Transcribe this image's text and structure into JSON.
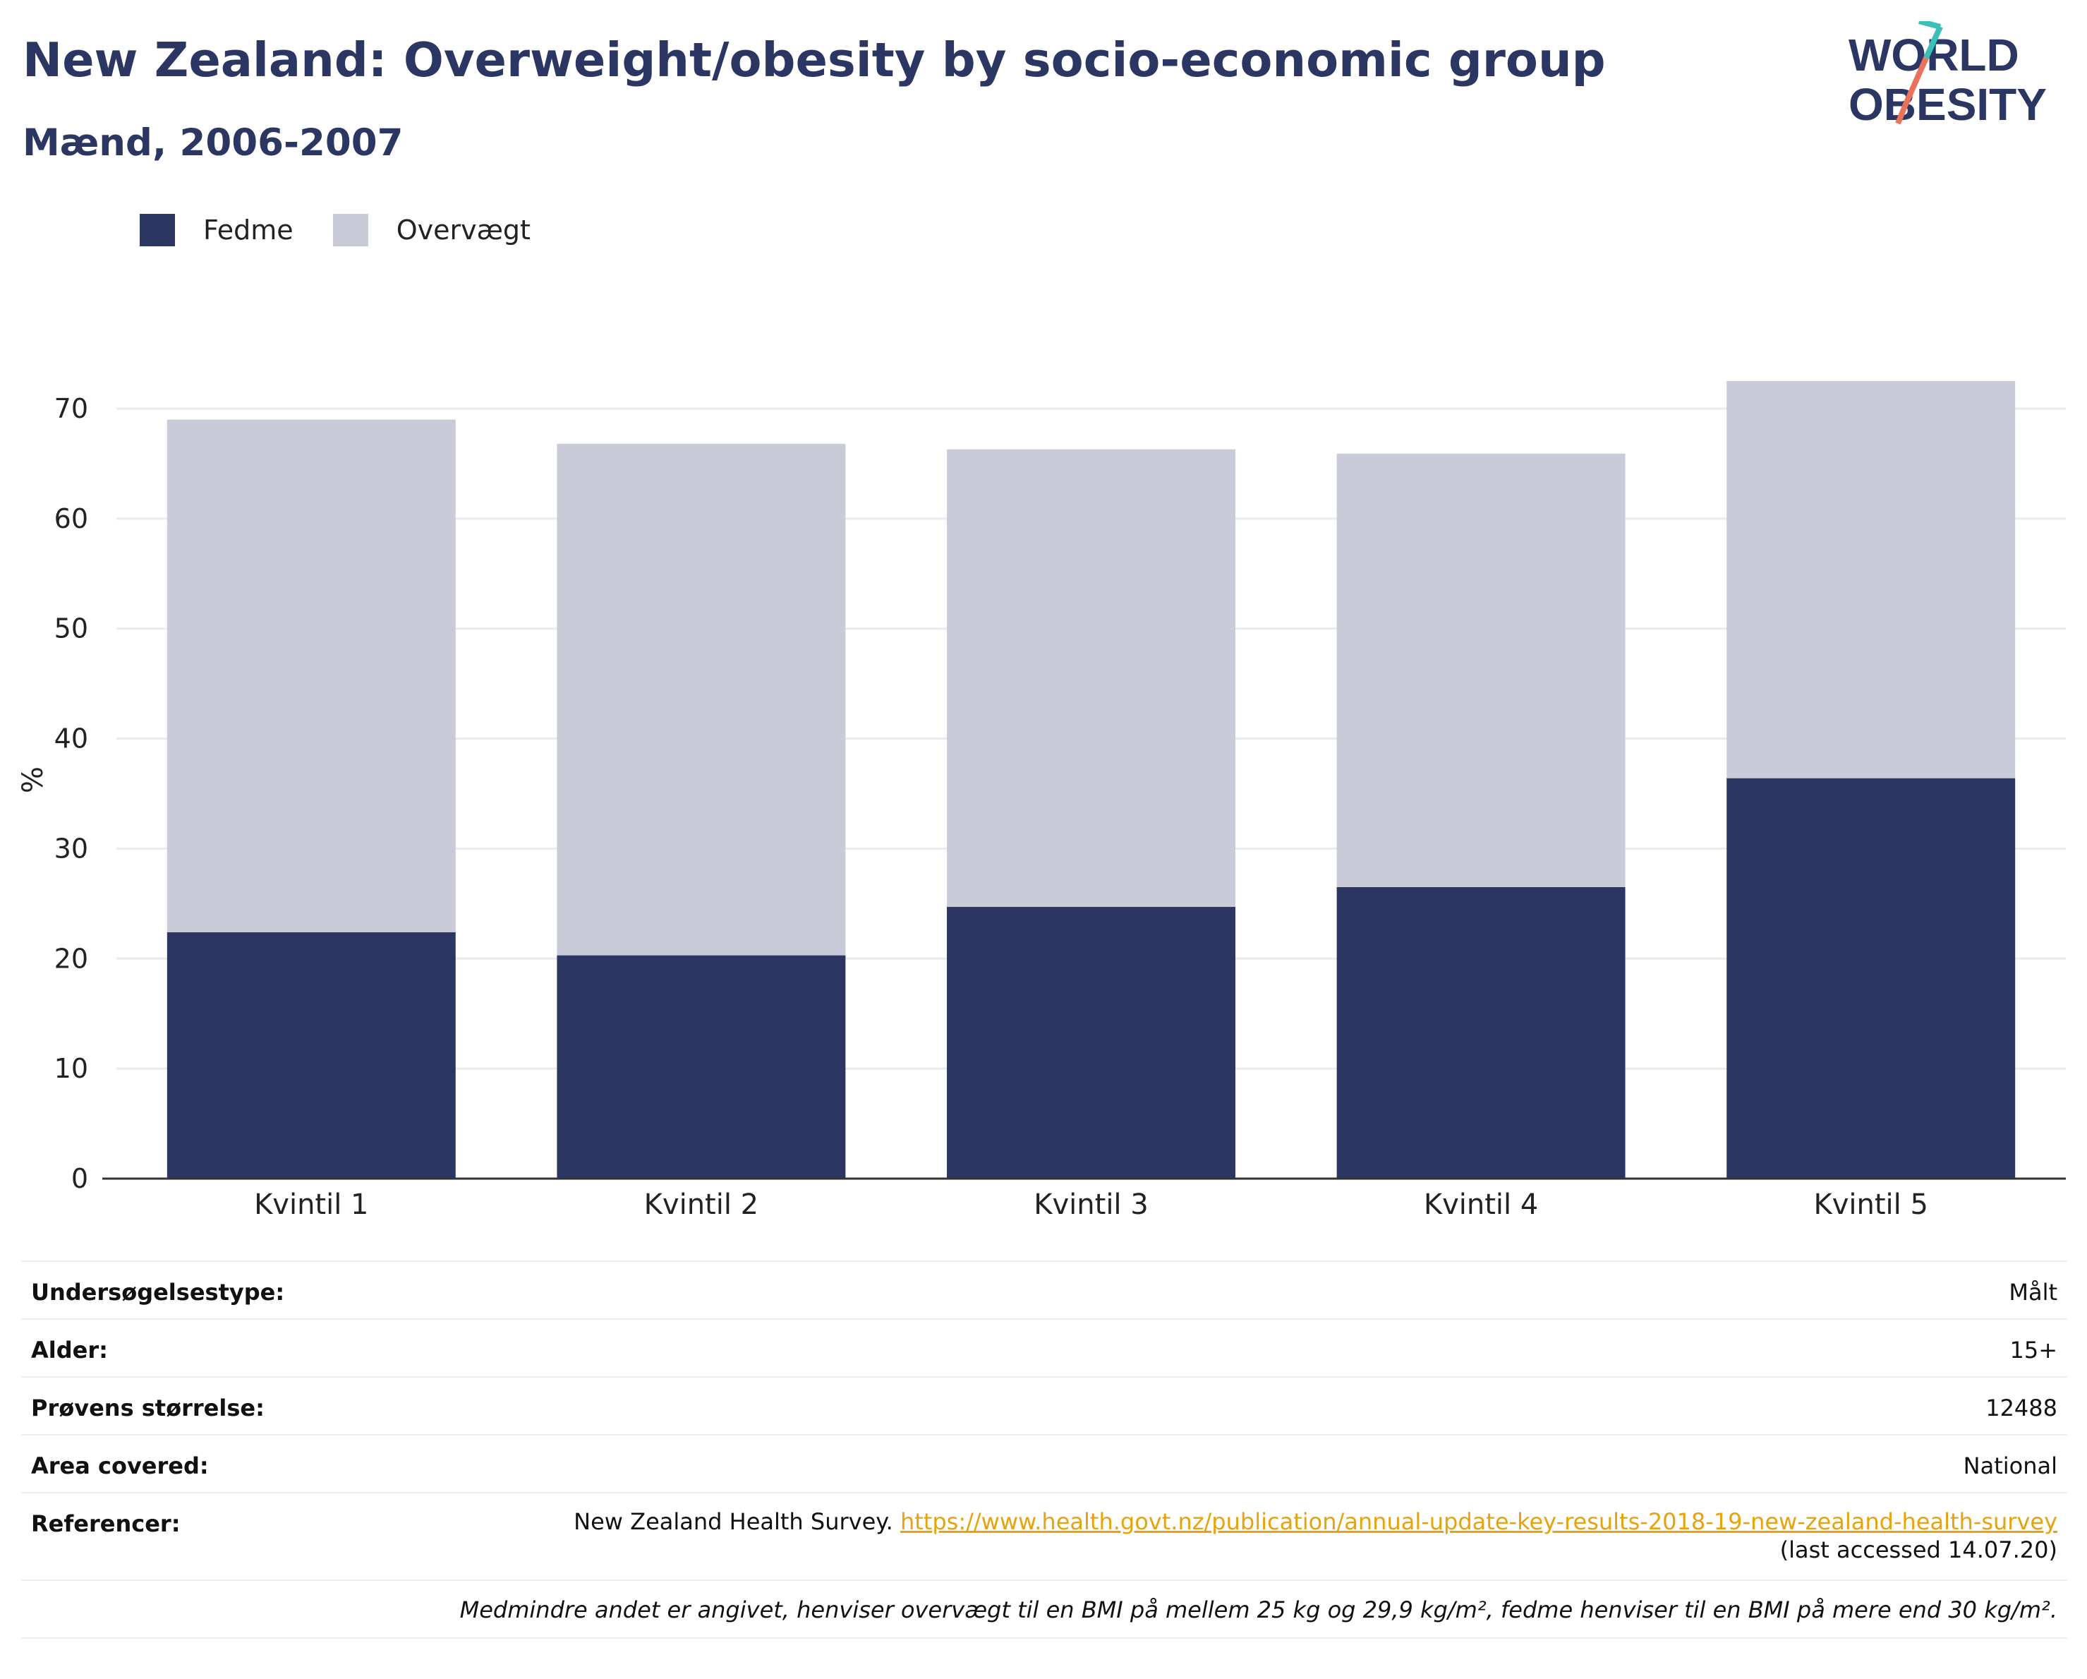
{
  "header": {
    "title": "New Zealand: Overweight/obesity by socio-economic group",
    "subtitle": "Mænd, 2006-2007"
  },
  "logo": {
    "line1": "WORLD",
    "line2": "OBESITY"
  },
  "legend": [
    {
      "label": "Fedme",
      "color": "#2b3663"
    },
    {
      "label": "Overvægt",
      "color": "#c9ccd8"
    }
  ],
  "chart_data": {
    "type": "bar",
    "stacked": true,
    "categories": [
      "Kvintil 1",
      "Kvintil 2",
      "Kvintil 3",
      "Kvintil 4",
      "Kvintil 5"
    ],
    "series": [
      {
        "name": "Fedme",
        "values": [
          22.4,
          20.3,
          24.7,
          26.5,
          36.4
        ],
        "color": "#2b3663"
      },
      {
        "name": "Overvægt",
        "values": [
          46.6,
          46.5,
          41.6,
          39.4,
          36.1
        ],
        "color": "#c9ccd8"
      }
    ],
    "ylabel": "%",
    "ylim": [
      0,
      72.5
    ],
    "yticks": [
      0,
      10,
      20,
      30,
      40,
      50,
      60,
      70
    ],
    "grid": true,
    "legend_position": "top-left"
  },
  "info": {
    "survey_type": {
      "label": "Undersøgelsestype:",
      "value": "Målt"
    },
    "age": {
      "label": "Alder:",
      "value": "15+"
    },
    "sample_size": {
      "label": "Prøvens størrelse:",
      "value": "12488"
    },
    "area": {
      "label": "Area covered:",
      "value": "National"
    },
    "references": {
      "label": "Referencer:",
      "text": "New Zealand Health Survey. ",
      "link": "https://www.health.govt.nz/publication/annual-update-key-results-2018-19-new-zealand-health-survey",
      "accessed": "(last accessed 14.07.20)"
    },
    "note": "Medmindre andet er angivet, henviser overvægt til en BMI på mellem 25 kg og 29,9 kg/m², fedme henviser til en BMI på mere end 30 kg/m²."
  }
}
